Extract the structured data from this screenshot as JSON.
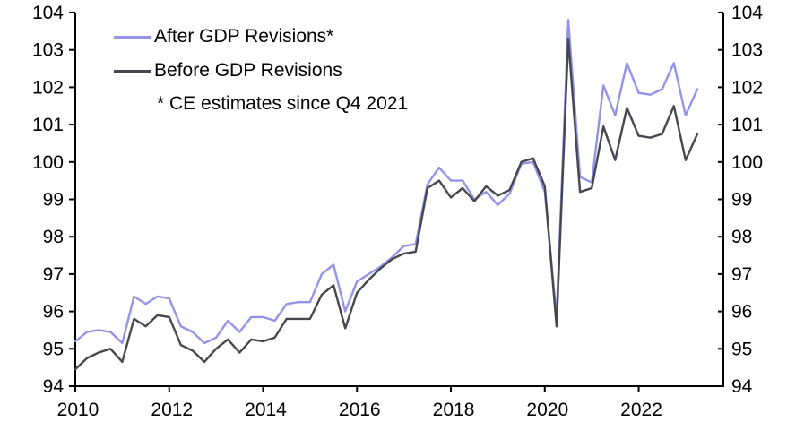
{
  "colors": {
    "after_line": "#9593E8",
    "before_line": "#47474F",
    "axis": "#000000",
    "background": "#FFFFFF",
    "text": "#000000"
  },
  "chart_data": {
    "type": "line",
    "title": "",
    "xlabel": "",
    "ylabel": "",
    "ylim": [
      94,
      104
    ],
    "grid": false,
    "legend_position": "top-left",
    "axes_shown": {
      "left": true,
      "right": true,
      "bottom": true,
      "top": false
    },
    "y_ticks": [
      94,
      95,
      96,
      97,
      98,
      99,
      100,
      101,
      102,
      103,
      104
    ],
    "x_tick_labels": [
      "2010",
      "2012",
      "2014",
      "2016",
      "2018",
      "2020",
      "2022"
    ],
    "x_tick_indices": [
      0,
      8,
      16,
      24,
      32,
      40,
      48
    ],
    "x_quarters": [
      "2010 Q1",
      "2010 Q2",
      "2010 Q3",
      "2010 Q4",
      "2011 Q1",
      "2011 Q2",
      "2011 Q3",
      "2011 Q4",
      "2012 Q1",
      "2012 Q2",
      "2012 Q3",
      "2012 Q4",
      "2013 Q1",
      "2013 Q2",
      "2013 Q3",
      "2013 Q4",
      "2014 Q1",
      "2014 Q2",
      "2014 Q3",
      "2014 Q4",
      "2015 Q1",
      "2015 Q2",
      "2015 Q3",
      "2015 Q4",
      "2016 Q1",
      "2016 Q2",
      "2016 Q3",
      "2016 Q4",
      "2017 Q1",
      "2017 Q2",
      "2017 Q3",
      "2017 Q4",
      "2018 Q1",
      "2018 Q2",
      "2018 Q3",
      "2018 Q4",
      "2019 Q1",
      "2019 Q2",
      "2019 Q3",
      "2019 Q4",
      "2020 Q1",
      "2020 Q2",
      "2020 Q3",
      "2020 Q4",
      "2021 Q1",
      "2021 Q2",
      "2021 Q3",
      "2021 Q4",
      "2022 Q1",
      "2022 Q2",
      "2022 Q3",
      "2022 Q4",
      "2023 Q1",
      "2023 Q2"
    ],
    "series": [
      {
        "name": "After GDP Revisions*",
        "color": "#9593E8",
        "values": [
          95.2,
          95.45,
          95.5,
          95.45,
          95.15,
          96.4,
          96.2,
          96.4,
          96.35,
          95.6,
          95.45,
          95.15,
          95.3,
          95.75,
          95.45,
          95.85,
          95.85,
          95.75,
          96.2,
          96.25,
          96.25,
          97.0,
          97.25,
          96.0,
          96.8,
          97.0,
          97.2,
          97.45,
          97.75,
          97.8,
          99.4,
          99.85,
          99.5,
          99.5,
          99.0,
          99.2,
          98.85,
          99.15,
          99.95,
          100.0,
          99.2,
          95.85,
          103.8,
          99.6,
          99.45,
          102.05,
          101.25,
          102.65,
          101.85,
          101.8,
          101.95,
          102.65,
          101.25,
          101.95
        ]
      },
      {
        "name": "Before GDP Revisions",
        "color": "#47474F",
        "values": [
          94.45,
          94.75,
          94.9,
          95.0,
          94.65,
          95.8,
          95.6,
          95.9,
          95.85,
          95.1,
          94.95,
          94.65,
          95.0,
          95.25,
          94.9,
          95.25,
          95.2,
          95.3,
          95.8,
          95.8,
          95.8,
          96.45,
          96.7,
          95.55,
          96.5,
          96.85,
          97.15,
          97.4,
          97.55,
          97.6,
          99.3,
          99.5,
          99.05,
          99.3,
          98.95,
          99.35,
          99.1,
          99.25,
          100.0,
          100.1,
          99.35,
          95.6,
          103.3,
          99.2,
          99.3,
          100.95,
          100.05,
          101.45,
          100.7,
          100.65,
          100.75,
          101.5,
          100.05,
          100.75
        ]
      }
    ],
    "legend_note": "* CE estimates since Q4 2021"
  }
}
